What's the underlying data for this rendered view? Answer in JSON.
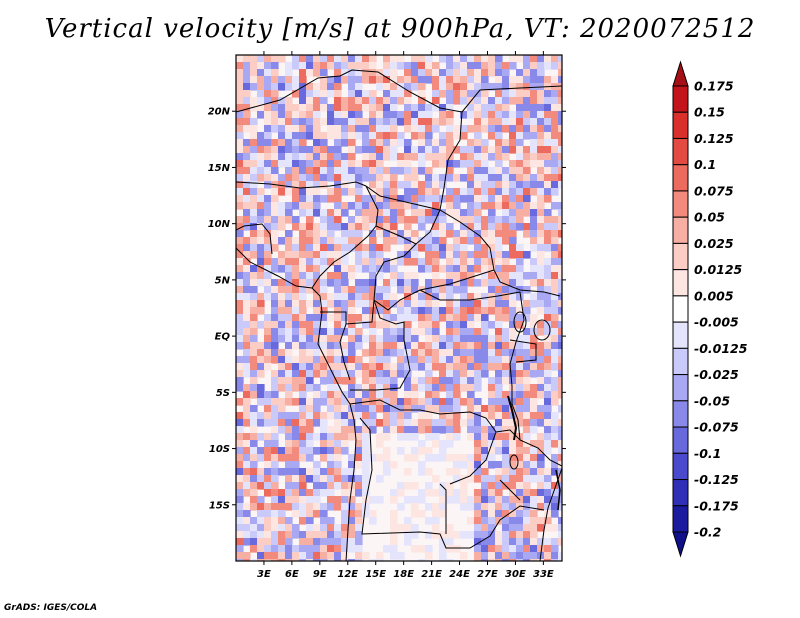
{
  "title": "Vertical velocity [m/s] at 900hPa, VT: 2020072512",
  "credit": "GrADS: IGES/COLA",
  "map": {
    "lon_range": [
      0,
      35
    ],
    "lat_range": [
      -20,
      25
    ],
    "lon_ticks": [
      "3E",
      "6E",
      "9E",
      "12E",
      "15E",
      "18E",
      "21E",
      "24E",
      "27E",
      "30E",
      "33E"
    ],
    "lat_ticks": [
      "20N",
      "15N",
      "10N",
      "5N",
      "EQ",
      "5S",
      "10S",
      "15S"
    ]
  },
  "colorbar": {
    "levels": [
      "0.175",
      "0.15",
      "0.125",
      "0.1",
      "0.075",
      "0.05",
      "0.025",
      "0.0125",
      "0.005",
      "-0.005",
      "-0.0125",
      "-0.025",
      "-0.05",
      "-0.075",
      "-0.1",
      "-0.125",
      "-0.175",
      "-0.2"
    ],
    "colors": [
      "#a50f15",
      "#c3141c",
      "#d9302c",
      "#e34a42",
      "#ec6a5e",
      "#f28a7e",
      "#f7aea3",
      "#fbcdc5",
      "#fde6e2",
      "#ffffff",
      "#e4e4fd",
      "#c9c9fa",
      "#a9a9f3",
      "#8989ea",
      "#6969de",
      "#4a4ace",
      "#2f2fb8",
      "#1b1ba0",
      "#10108a"
    ]
  }
}
